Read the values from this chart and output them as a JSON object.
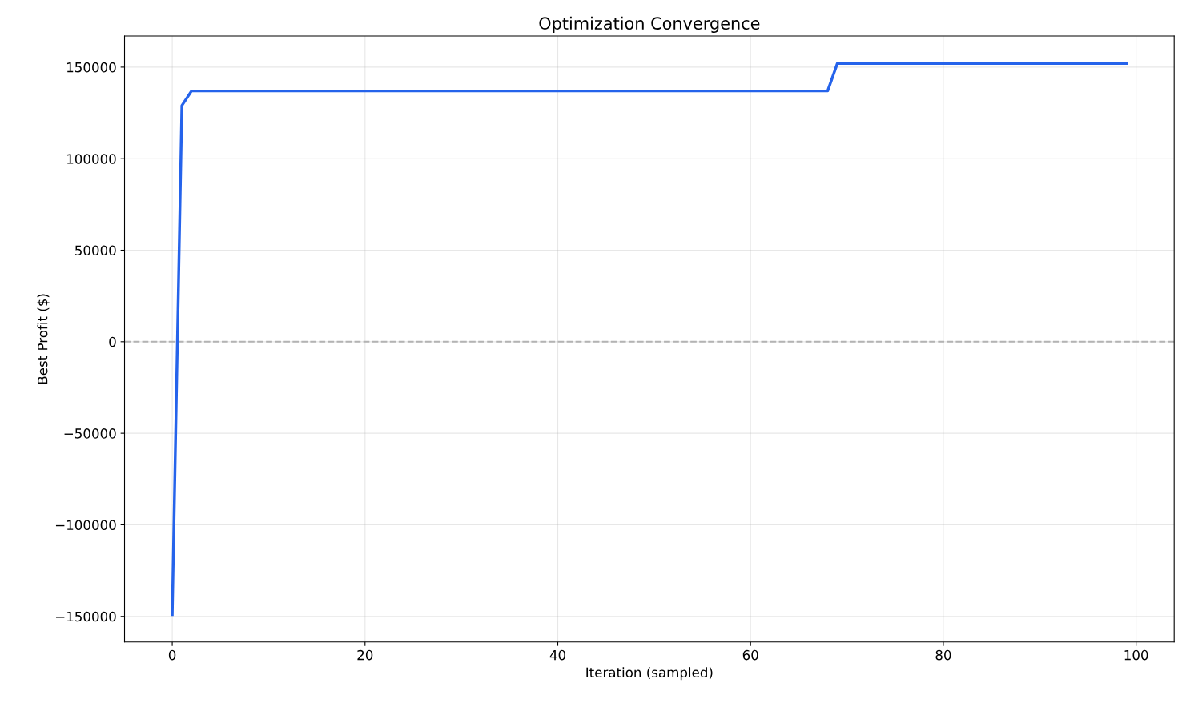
{
  "chart_data": {
    "type": "line",
    "title": "Optimization Convergence",
    "xlabel": "Iteration (sampled)",
    "ylabel": "Best Profit ($)",
    "series": [
      {
        "x": [
          0,
          1,
          2,
          68,
          69,
          99
        ],
        "values": [
          -149000,
          129000,
          137000,
          137000,
          152000,
          152000
        ],
        "color": "#2563eb"
      }
    ],
    "xlim": [
      -4.95,
      103.95
    ],
    "ylim": [
      -164000,
      167000
    ],
    "xticks": [
      0,
      20,
      40,
      60,
      80,
      100
    ],
    "yticks": [
      {
        "value": -150000,
        "label": "−150000"
      },
      {
        "value": -100000,
        "label": "−100000"
      },
      {
        "value": -50000,
        "label": "−50000"
      },
      0,
      50000,
      100000,
      150000
    ],
    "ref_lines": [
      {
        "axis": "y",
        "value": 0,
        "color": "#b3b3b3",
        "line_style": "dashed"
      }
    ],
    "grid": true,
    "marker": "none",
    "line_style": "solid"
  }
}
